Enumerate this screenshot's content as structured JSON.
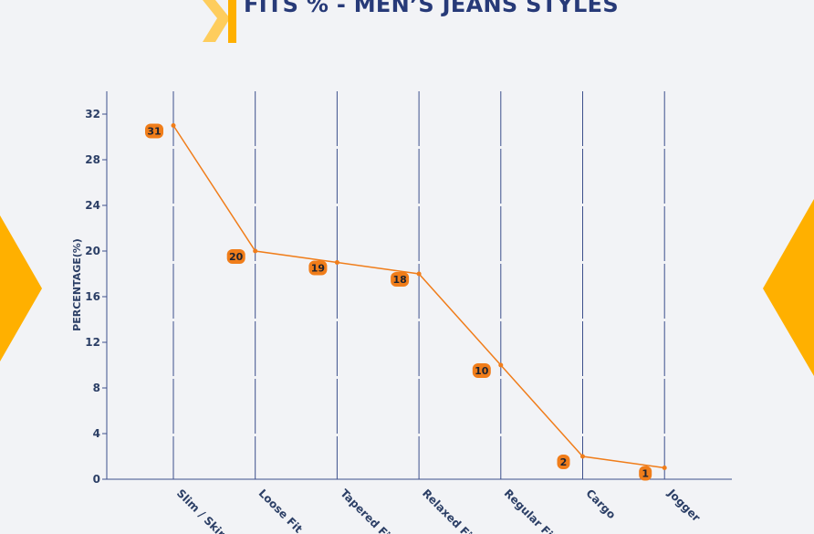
{
  "page": {
    "title": "FITS % - MEN’S JEANS STYLES",
    "accent_color": "#ffb000",
    "title_color": "#273a78"
  },
  "chart_data": {
    "type": "line",
    "title": "FITS % - MEN’S JEANS STYLES",
    "xlabel": "",
    "ylabel": "PERCENTAGE(%)",
    "categories": [
      "Slim / Skinny",
      "Loose Fit",
      "Tapered Fit",
      "Relaxed Fit",
      "Regular Fit",
      "Cargo",
      "Jogger"
    ],
    "series": [
      {
        "values": [
          31,
          20,
          19,
          18,
          10,
          2,
          1
        ],
        "color": "#f07d1a"
      }
    ],
    "ylim": [
      0,
      34
    ],
    "yticks": [
      0,
      4,
      8,
      12,
      16,
      20,
      24,
      28,
      32
    ],
    "grid": "vertical dashed lines at each category",
    "data_labels": true
  }
}
